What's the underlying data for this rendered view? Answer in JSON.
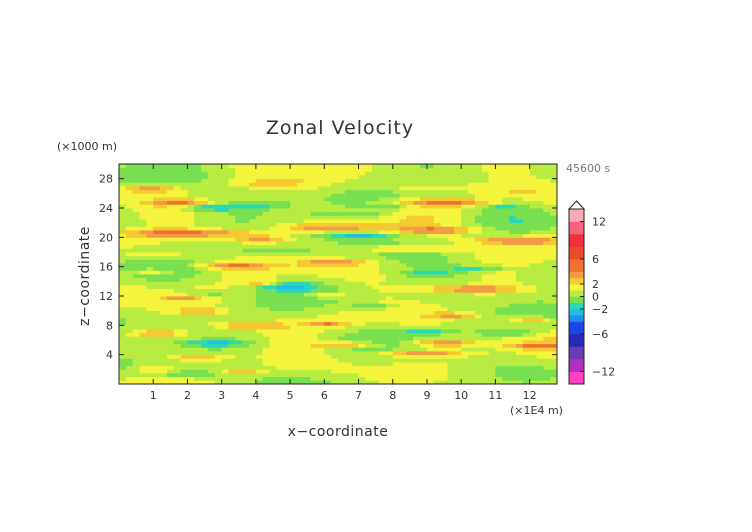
{
  "chart_data": {
    "type": "heatmap",
    "title": "Zonal Velocity",
    "xlabel": "x−coordinate",
    "ylabel": "z−coordinate",
    "x_unit": "(×1E4 m)",
    "y_unit": "(×1000 m)",
    "time_label": "45600 s",
    "xlim": [
      0,
      12.8
    ],
    "ylim": [
      0,
      30
    ],
    "x_ticks": [
      1,
      2,
      3,
      4,
      5,
      6,
      7,
      8,
      9,
      10,
      11,
      12
    ],
    "y_ticks": [
      4,
      8,
      12,
      16,
      20,
      24,
      28
    ],
    "colorbar": {
      "range": [
        -14,
        14
      ],
      "tick_values": [
        12,
        6,
        2,
        0,
        -2,
        -6,
        -12
      ],
      "tick_labels": [
        "12",
        "6",
        "2",
        "0",
        "−2",
        "−6",
        "−12"
      ],
      "levels": [
        {
          "lo": -14,
          "hi": -12,
          "color": "#ff40c0"
        },
        {
          "lo": -12,
          "hi": -10,
          "color": "#b030c0"
        },
        {
          "lo": -10,
          "hi": -8,
          "color": "#6a3cb8"
        },
        {
          "lo": -8,
          "hi": -6,
          "color": "#2a28b8"
        },
        {
          "lo": -6,
          "hi": -4,
          "color": "#1e46e6"
        },
        {
          "lo": -4,
          "hi": -3,
          "color": "#1e8ef0"
        },
        {
          "lo": -3,
          "hi": -2,
          "color": "#22bce6"
        },
        {
          "lo": -2,
          "hi": -1,
          "color": "#28d8b8"
        },
        {
          "lo": -1,
          "hi": 0,
          "color": "#78e050"
        },
        {
          "lo": 0,
          "hi": 1,
          "color": "#b8ec40"
        },
        {
          "lo": 1,
          "hi": 2,
          "color": "#f4f43c"
        },
        {
          "lo": 2,
          "hi": 3,
          "color": "#f6c832"
        },
        {
          "lo": 3,
          "hi": 4,
          "color": "#f29a46"
        },
        {
          "lo": 4,
          "hi": 6,
          "color": "#f07030"
        },
        {
          "lo": 6,
          "hi": 8,
          "color": "#f04a28"
        },
        {
          "lo": 8,
          "hi": 10,
          "color": "#f03040"
        },
        {
          "lo": 10,
          "hi": 12,
          "color": "#f46478"
        },
        {
          "lo": 12,
          "hi": 14,
          "color": "#f8aab4"
        }
      ]
    },
    "grid_size": {
      "nx": 64,
      "nz": 60
    },
    "features": [
      {
        "x": 0.9,
        "z": 26.6,
        "sx": 0.8,
        "sz": 0.45,
        "amp": 3.2
      },
      {
        "x": 4.2,
        "z": 27.4,
        "sx": 1.2,
        "sz": 0.5,
        "amp": 1.3
      },
      {
        "x": 8.8,
        "z": 26.8,
        "sx": 1.8,
        "sz": 0.5,
        "amp": 1.4
      },
      {
        "x": 11.5,
        "z": 26.0,
        "sx": 1.0,
        "sz": 0.45,
        "amp": 1.2
      },
      {
        "x": 1.8,
        "z": 24.8,
        "sx": 0.9,
        "sz": 0.45,
        "amp": 3.0
      },
      {
        "x": 2.7,
        "z": 24.1,
        "sx": 0.9,
        "sz": 0.45,
        "amp": -2.8
      },
      {
        "x": 4.2,
        "z": 24.5,
        "sx": 0.7,
        "sz": 0.4,
        "amp": -1.5
      },
      {
        "x": 9.6,
        "z": 24.8,
        "sx": 1.4,
        "sz": 0.55,
        "amp": 3.8
      },
      {
        "x": 8.0,
        "z": 24.2,
        "sx": 0.8,
        "sz": 0.4,
        "amp": -1.4
      },
      {
        "x": 11.2,
        "z": 24.2,
        "sx": 0.6,
        "sz": 0.4,
        "amp": -1.5
      },
      {
        "x": 6.8,
        "z": 23.2,
        "sx": 1.3,
        "sz": 0.45,
        "amp": -1.6
      },
      {
        "x": 2.1,
        "z": 20.6,
        "sx": 2.2,
        "sz": 0.55,
        "amp": 3.6
      },
      {
        "x": 6.2,
        "z": 21.4,
        "sx": 1.3,
        "sz": 0.5,
        "amp": 3.4
      },
      {
        "x": 9.3,
        "z": 21.0,
        "sx": 1.3,
        "sz": 0.45,
        "amp": 3.2
      },
      {
        "x": 7.0,
        "z": 20.3,
        "sx": 1.1,
        "sz": 0.4,
        "amp": -2.8
      },
      {
        "x": 11.6,
        "z": 19.6,
        "sx": 1.4,
        "sz": 0.5,
        "amp": 3.4
      },
      {
        "x": 4.1,
        "z": 19.8,
        "sx": 0.9,
        "sz": 0.45,
        "amp": 3.0
      },
      {
        "x": 8.4,
        "z": 18.5,
        "sx": 1.5,
        "sz": 0.45,
        "amp": 2.6
      },
      {
        "x": 4.5,
        "z": 18.3,
        "sx": 1.1,
        "sz": 0.4,
        "amp": -1.8
      },
      {
        "x": 1.2,
        "z": 17.6,
        "sx": 0.8,
        "sz": 0.4,
        "amp": 2.4
      },
      {
        "x": 3.3,
        "z": 16.2,
        "sx": 1.1,
        "sz": 0.45,
        "amp": 3.2
      },
      {
        "x": 6.3,
        "z": 16.6,
        "sx": 0.9,
        "sz": 0.4,
        "amp": 3.0
      },
      {
        "x": 10.5,
        "z": 15.8,
        "sx": 0.9,
        "sz": 0.4,
        "amp": -2.2
      },
      {
        "x": 9.1,
        "z": 15.1,
        "sx": 0.9,
        "sz": 0.4,
        "amp": -1.6
      },
      {
        "x": 1.0,
        "z": 15.4,
        "sx": 0.6,
        "sz": 0.35,
        "amp": 2.8
      },
      {
        "x": 10.2,
        "z": 13.0,
        "sx": 1.6,
        "sz": 0.5,
        "amp": 3.4
      },
      {
        "x": 4.9,
        "z": 13.4,
        "sx": 0.8,
        "sz": 0.5,
        "amp": -2.8
      },
      {
        "x": 4.2,
        "z": 13.8,
        "sx": 0.6,
        "sz": 0.4,
        "amp": 2.6
      },
      {
        "x": 2.6,
        "z": 12.4,
        "sx": 0.8,
        "sz": 0.4,
        "amp": -1.6
      },
      {
        "x": 1.8,
        "z": 11.8,
        "sx": 0.5,
        "sz": 0.35,
        "amp": 2.6
      },
      {
        "x": 6.0,
        "z": 12.1,
        "sx": 0.6,
        "sz": 0.35,
        "amp": 2.6
      },
      {
        "x": 7.4,
        "z": 10.6,
        "sx": 0.7,
        "sz": 0.4,
        "amp": -2.0
      },
      {
        "x": 2.3,
        "z": 10.0,
        "sx": 0.7,
        "sz": 0.35,
        "amp": 3.0
      },
      {
        "x": 9.8,
        "z": 9.4,
        "sx": 0.8,
        "sz": 0.4,
        "amp": 2.6
      },
      {
        "x": 12.0,
        "z": 8.8,
        "sx": 0.6,
        "sz": 0.35,
        "amp": 2.8
      },
      {
        "x": 3.8,
        "z": 8.0,
        "sx": 1.0,
        "sz": 0.45,
        "amp": 3.2
      },
      {
        "x": 6.1,
        "z": 8.2,
        "sx": 0.6,
        "sz": 0.35,
        "amp": 3.0
      },
      {
        "x": 9.0,
        "z": 7.2,
        "sx": 0.8,
        "sz": 0.4,
        "amp": -2.4
      },
      {
        "x": 1.2,
        "z": 7.0,
        "sx": 0.8,
        "sz": 0.4,
        "amp": 3.0
      },
      {
        "x": 11.4,
        "z": 7.0,
        "sx": 0.9,
        "sz": 0.4,
        "amp": -2.4
      },
      {
        "x": 2.8,
        "z": 5.6,
        "sx": 1.0,
        "sz": 0.45,
        "amp": -2.6
      },
      {
        "x": 6.7,
        "z": 5.4,
        "sx": 1.0,
        "sz": 0.4,
        "amp": 3.2
      },
      {
        "x": 9.4,
        "z": 5.6,
        "sx": 1.0,
        "sz": 0.45,
        "amp": 3.6
      },
      {
        "x": 12.2,
        "z": 5.2,
        "sx": 0.8,
        "sz": 0.4,
        "amp": 2.8
      },
      {
        "x": 2.4,
        "z": 3.6,
        "sx": 0.8,
        "sz": 0.4,
        "amp": 3.2
      },
      {
        "x": 8.8,
        "z": 4.2,
        "sx": 1.3,
        "sz": 0.45,
        "amp": 3.4
      },
      {
        "x": 2.0,
        "z": 1.4,
        "sx": 0.8,
        "sz": 0.4,
        "amp": -2.2
      },
      {
        "x": 3.6,
        "z": 1.8,
        "sx": 0.6,
        "sz": 0.35,
        "amp": 2.6
      },
      {
        "x": 1.1,
        "z": 2.0,
        "sx": 0.5,
        "sz": 0.35,
        "amp": 2.4
      }
    ],
    "background_waves": [
      {
        "kx": 0.9,
        "kz": 0.55,
        "phase": 0.3,
        "amp": 0.9
      },
      {
        "kx": 0.45,
        "kz": 0.95,
        "phase": 1.7,
        "amp": 0.7
      },
      {
        "kx": 1.6,
        "kz": 0.35,
        "phase": 2.6,
        "amp": 0.5
      }
    ],
    "background_offset": 0.6
  }
}
